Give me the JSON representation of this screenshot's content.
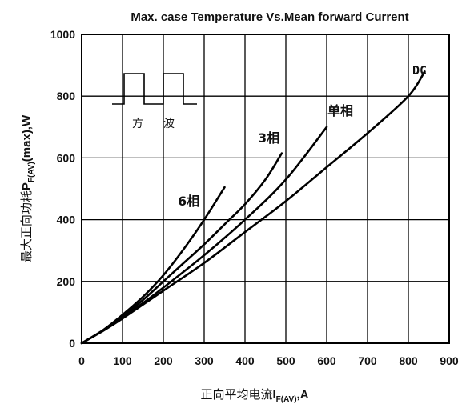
{
  "chart_data": {
    "type": "line",
    "title": "Max. case Temperature Vs.Mean forward Current",
    "xlabel": {
      "prefix": "正向平均电流",
      "symbol": "I",
      "subscript": "F(AV)",
      "suffix": ",A"
    },
    "ylabel": {
      "prefix": "最大正向功耗",
      "symbol": "P",
      "subscript": "F(AV)",
      "suffix": "(max),W"
    },
    "xlim": [
      0,
      900
    ],
    "ylim": [
      0,
      1000
    ],
    "x_ticks": [
      "0",
      "100",
      "200",
      "300",
      "400",
      "500",
      "600",
      "700",
      "800",
      "900"
    ],
    "y_ticks": [
      "0",
      "200",
      "400",
      "600",
      "800",
      "1000"
    ],
    "grid": true,
    "inset": {
      "label_left": "方",
      "label_right": "波"
    },
    "series": [
      {
        "name": "6相",
        "points": [
          [
            0,
            0
          ],
          [
            50,
            40
          ],
          [
            100,
            92
          ],
          [
            150,
            150
          ],
          [
            200,
            220
          ],
          [
            250,
            305
          ],
          [
            300,
            400
          ],
          [
            350,
            505
          ]
        ]
      },
      {
        "name": "3相",
        "points": [
          [
            0,
            0
          ],
          [
            50,
            40
          ],
          [
            100,
            88
          ],
          [
            150,
            140
          ],
          [
            200,
            200
          ],
          [
            250,
            260
          ],
          [
            300,
            320
          ],
          [
            350,
            385
          ],
          [
            400,
            450
          ],
          [
            450,
            530
          ],
          [
            490,
            615
          ]
        ]
      },
      {
        "name": "单相",
        "points": [
          [
            0,
            0
          ],
          [
            50,
            40
          ],
          [
            100,
            85
          ],
          [
            150,
            130
          ],
          [
            200,
            180
          ],
          [
            300,
            285
          ],
          [
            400,
            400
          ],
          [
            500,
            530
          ],
          [
            600,
            700
          ]
        ]
      },
      {
        "name": "DC",
        "points": [
          [
            0,
            0
          ],
          [
            50,
            38
          ],
          [
            100,
            80
          ],
          [
            200,
            170
          ],
          [
            300,
            260
          ],
          [
            400,
            360
          ],
          [
            500,
            460
          ],
          [
            600,
            570
          ],
          [
            700,
            680
          ],
          [
            800,
            800
          ],
          [
            840,
            880
          ]
        ]
      }
    ],
    "series_label_style": {
      "six": "6相",
      "three": "3相",
      "single": "单相",
      "dc": "DC"
    }
  }
}
